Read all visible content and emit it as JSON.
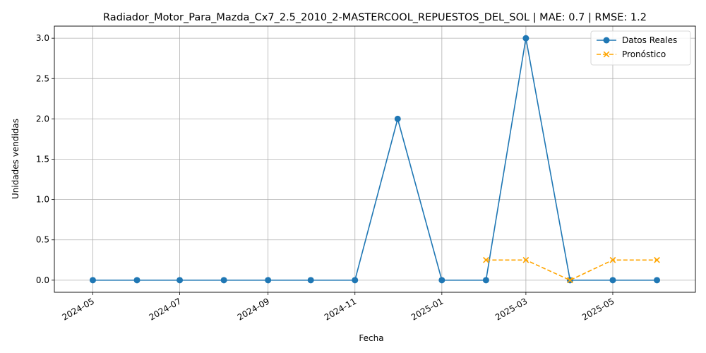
{
  "chart_data": {
    "type": "line",
    "title": "Radiador_Motor_Para_Mazda_Cx7_2.5_2010_2-MASTERCOOL_REPUESTOS_DEL_SOL | MAE: 0.7 | RMSE: 1.2",
    "xlabel": "Fecha",
    "ylabel": "Unidades vendidas",
    "ylim": [
      -0.15,
      3.15
    ],
    "xlim": [
      "2024-04-04",
      "2025-06-28"
    ],
    "x_ticks": [
      "2024-05",
      "2024-07",
      "2024-09",
      "2024-11",
      "2025-01",
      "2025-03",
      "2025-05"
    ],
    "y_ticks": [
      "0.0",
      "0.5",
      "1.0",
      "1.5",
      "2.0",
      "2.5",
      "3.0"
    ],
    "grid": true,
    "legend_position": "top-right",
    "series": [
      {
        "name": "Datos Reales",
        "color": "#1f77b4",
        "style": "solid",
        "marker": "circle",
        "x": [
          "2024-05-01",
          "2024-06-01",
          "2024-07-01",
          "2024-08-01",
          "2024-09-01",
          "2024-10-01",
          "2024-11-01",
          "2024-12-01",
          "2025-01-01",
          "2025-02-01",
          "2025-03-01",
          "2025-04-01",
          "2025-05-01",
          "2025-06-01"
        ],
        "values": [
          0,
          0,
          0,
          0,
          0,
          0,
          0,
          2,
          0,
          0,
          3,
          0,
          0,
          0
        ]
      },
      {
        "name": "Pronóstico",
        "color": "#ffa500",
        "style": "dashed",
        "marker": "x",
        "x": [
          "2025-02-01",
          "2025-03-01",
          "2025-04-01",
          "2025-05-01",
          "2025-06-01"
        ],
        "values": [
          0.25,
          0.25,
          0,
          0.25,
          0.25
        ]
      }
    ]
  }
}
